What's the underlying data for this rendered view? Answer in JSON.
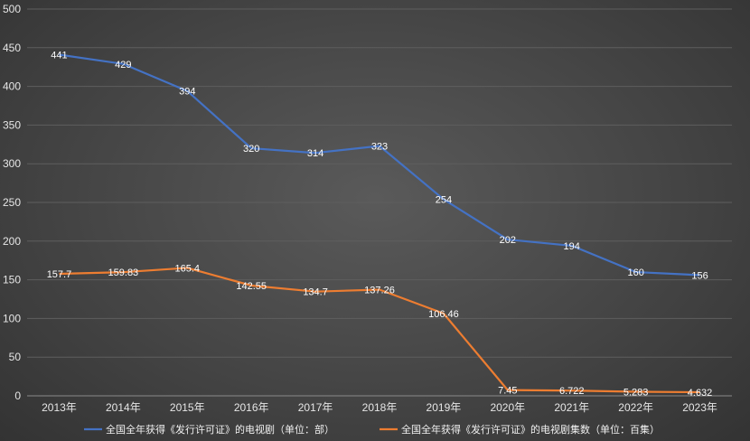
{
  "chart_data": {
    "type": "line",
    "title": "",
    "xlabel": "",
    "ylabel": "",
    "categories": [
      "2013年",
      "2014年",
      "2015年",
      "2016年",
      "2017年",
      "2018年",
      "2019年",
      "2020年",
      "2021年",
      "2022年",
      "2023年"
    ],
    "ylim": [
      0,
      500
    ],
    "yticks": [
      "0",
      "50",
      "100",
      "150",
      "200",
      "250",
      "300",
      "350",
      "400",
      "450",
      "500"
    ],
    "grid": true,
    "legend": "bottom",
    "series": [
      {
        "name": "全国全年获得《发行许可证》的电视剧（单位：部）",
        "color": "#4472c4",
        "values": [
          441,
          429,
          394,
          320,
          314,
          323,
          254,
          202,
          194,
          160,
          156
        ],
        "labels": [
          "441",
          "429",
          "394",
          "320",
          "314",
          "323",
          "254",
          "202",
          "194",
          "160",
          "156"
        ]
      },
      {
        "name": "全国全年获得《发行许可证》的电视剧集数（单位：百集）",
        "color": "#ed7d31",
        "values": [
          157.7,
          159.83,
          165.4,
          142.55,
          134.7,
          137.26,
          106.46,
          7.45,
          6.722,
          5.283,
          4.632
        ],
        "labels": [
          "157.7",
          "159.83",
          "165.4",
          "142.55",
          "134.7",
          "137.26",
          "106.46",
          "7.45",
          "6.722",
          "5.283",
          "4.632"
        ]
      }
    ]
  }
}
